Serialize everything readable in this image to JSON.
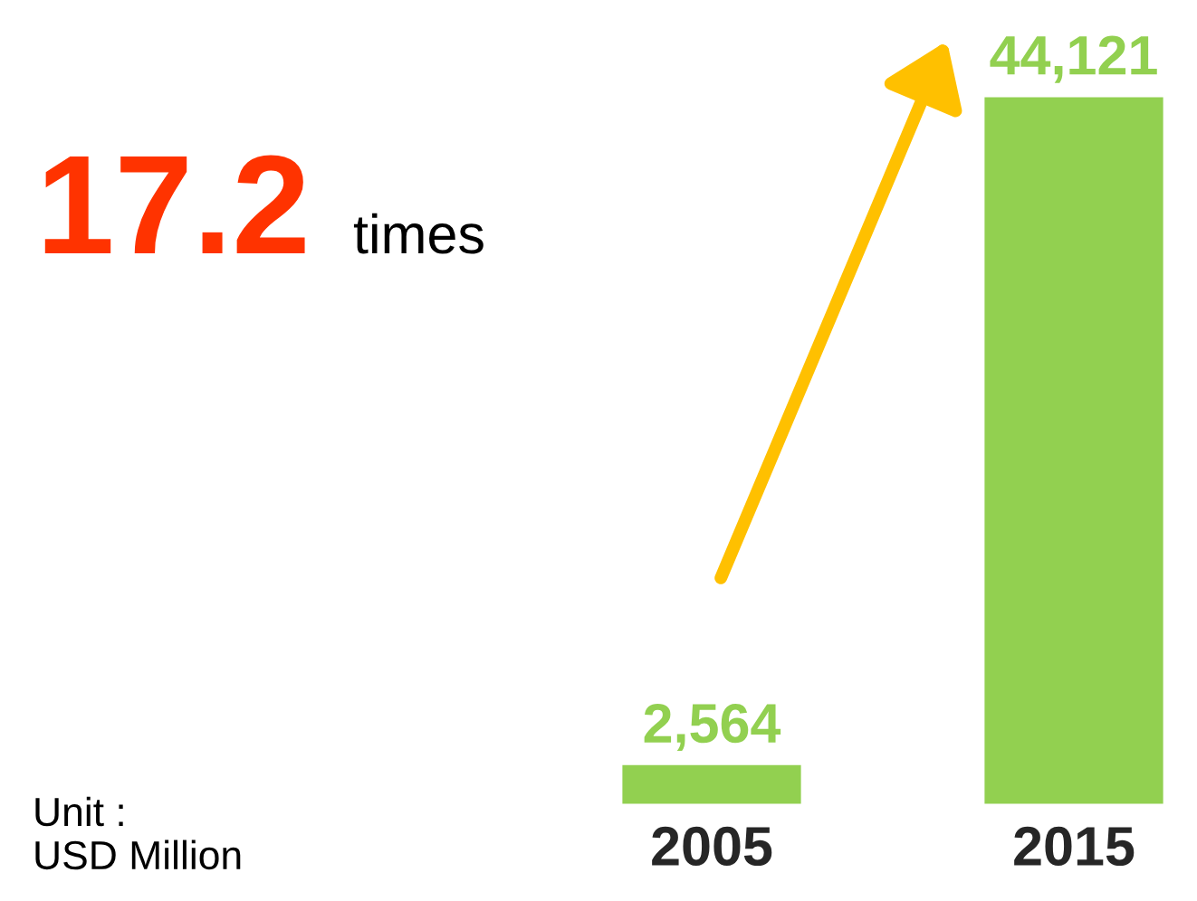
{
  "chart_data": {
    "type": "bar",
    "categories": [
      "2005",
      "2015"
    ],
    "values": [
      2564,
      44121
    ],
    "color": "#92d050",
    "data_labels": true,
    "value_labels": [
      "2,564",
      "44,121"
    ],
    "annotations": [
      "17.2",
      "times",
      "Unit :\nUSD Million"
    ]
  }
}
